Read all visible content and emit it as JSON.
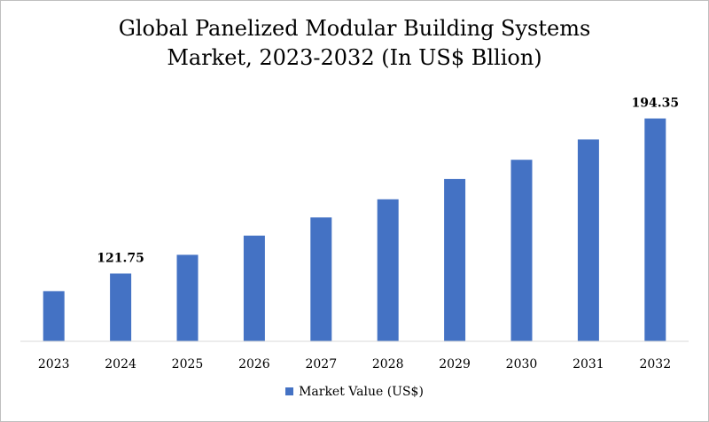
{
  "chart_data": {
    "type": "bar",
    "title_line1": "Global Panelized Modular Building Systems",
    "title_line2": "Market, 2023-2032 (In US$ Bllion)",
    "categories": [
      "2023",
      "2024",
      "2025",
      "2026",
      "2027",
      "2028",
      "2029",
      "2030",
      "2031",
      "2032"
    ],
    "series": [
      {
        "name": "Market Value (US$)",
        "values": [
          113.5,
          121.75,
          130.5,
          139.5,
          148.0,
          156.5,
          166.0,
          175.0,
          184.5,
          194.35
        ]
      }
    ],
    "data_labels": {
      "1": "121.75",
      "9": "194.35"
    },
    "ylim": [
      90,
      200
    ],
    "grid": false,
    "legend_position": "bottom",
    "bar_color": "#4472c4"
  }
}
